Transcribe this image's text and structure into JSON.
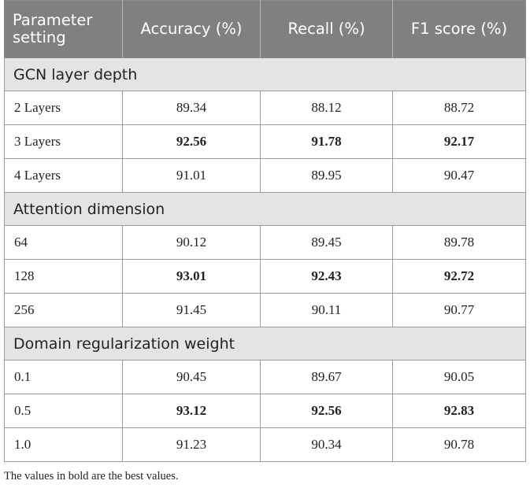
{
  "table": {
    "headers": [
      "Parameter setting",
      "Accuracy (%)",
      "Recall (%)",
      "F1 score (%)"
    ],
    "groups": [
      {
        "title": "GCN layer depth",
        "rows": [
          {
            "label": "2 Layers",
            "accuracy": "89.34",
            "recall": "88.12",
            "f1": "88.72",
            "best": false
          },
          {
            "label": "3 Layers",
            "accuracy": "92.56",
            "recall": "91.78",
            "f1": "92.17",
            "best": true
          },
          {
            "label": "4 Layers",
            "accuracy": "91.01",
            "recall": "89.95",
            "f1": "90.47",
            "best": false
          }
        ]
      },
      {
        "title": "Attention dimension",
        "rows": [
          {
            "label": "64",
            "accuracy": "90.12",
            "recall": "89.45",
            "f1": "89.78",
            "best": false
          },
          {
            "label": "128",
            "accuracy": "93.01",
            "recall": "92.43",
            "f1": "92.72",
            "best": true
          },
          {
            "label": "256",
            "accuracy": "91.45",
            "recall": "90.11",
            "f1": "90.77",
            "best": false
          }
        ]
      },
      {
        "title": "Domain regularization weight",
        "rows": [
          {
            "label": "0.1",
            "accuracy": "90.45",
            "recall": "89.67",
            "f1": "90.05",
            "best": false
          },
          {
            "label": "0.5",
            "accuracy": "93.12",
            "recall": "92.56",
            "f1": "92.83",
            "best": true
          },
          {
            "label": "1.0",
            "accuracy": "91.23",
            "recall": "90.34",
            "f1": "90.78",
            "best": false
          }
        ]
      }
    ],
    "footnote": "The values in bold are the best values."
  }
}
